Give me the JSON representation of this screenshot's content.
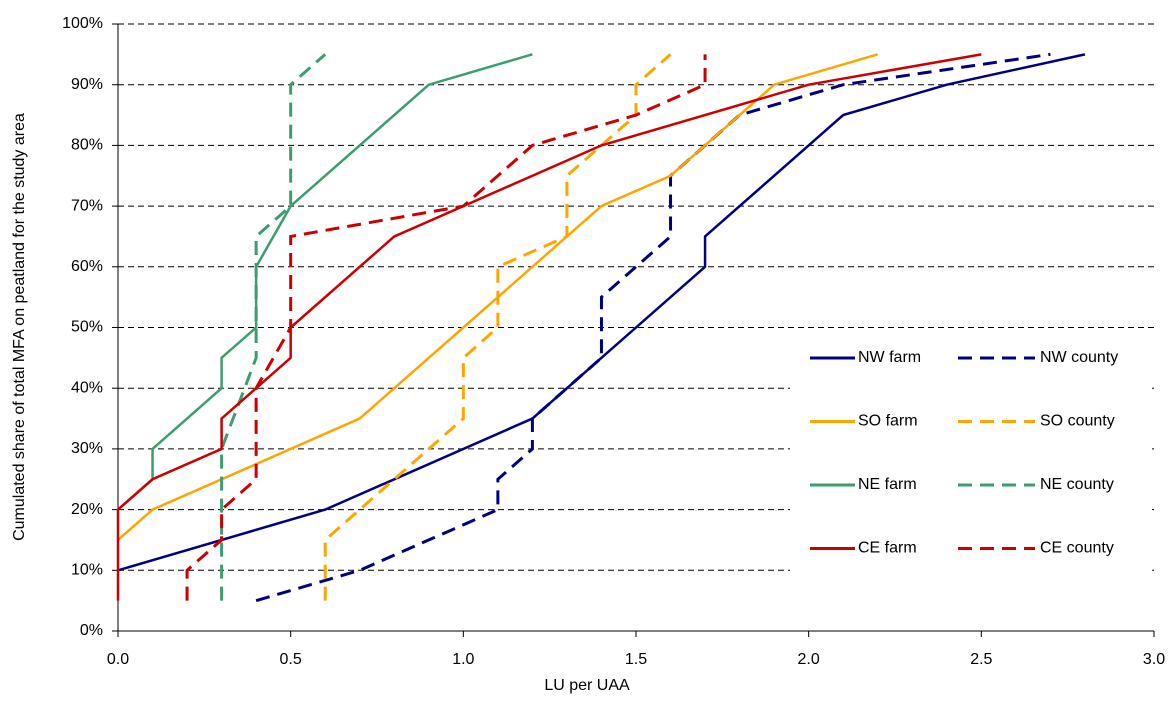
{
  "chart_data": {
    "type": "line",
    "x_label": "LU per UAA",
    "y_label": "Cumulated share of total MFA on peatland for the study area",
    "xlim": [
      0,
      3
    ],
    "ylim": [
      0,
      100
    ],
    "xticks": [
      {
        "value": 0,
        "label": "0.0"
      },
      0.5,
      {
        "value": 1,
        "label": "1.0"
      },
      1.5,
      {
        "value": 2,
        "label": "2.0"
      },
      2.5,
      {
        "value": 3,
        "label": "3.0"
      }
    ],
    "yticks": [
      {
        "value": 0,
        "label": "0%"
      },
      {
        "value": 10,
        "label": "10%"
      },
      {
        "value": 20,
        "label": "20%"
      },
      {
        "value": 30,
        "label": "30%"
      },
      {
        "value": 40,
        "label": "40%"
      },
      {
        "value": 50,
        "label": "50%"
      },
      {
        "value": 60,
        "label": "60%"
      },
      {
        "value": 70,
        "label": "70%"
      },
      {
        "value": 80,
        "label": "80%"
      },
      {
        "value": 90,
        "label": "90%"
      },
      {
        "value": 100,
        "label": "100%"
      }
    ],
    "grid": true,
    "legend": "right",
    "series": [
      {
        "name": "NW farm",
        "color": "#000080",
        "dash": false,
        "x": [
          0,
          0.6,
          1.2,
          1.4,
          1.7,
          1.7,
          2.1,
          2.4,
          2.8
        ],
        "values": [
          10,
          20,
          35,
          45,
          60,
          65,
          85,
          90,
          95
        ]
      },
      {
        "name": "NW county",
        "color": "#000080",
        "dash": true,
        "x": [
          0.4,
          0.7,
          1.1,
          1.1,
          1.2,
          1.2,
          1.4,
          1.4,
          1.6,
          1.6,
          1.8,
          2.1,
          2.7
        ],
        "values": [
          5,
          10,
          20,
          25,
          30,
          35,
          45,
          55,
          65,
          75,
          85,
          90,
          95
        ]
      },
      {
        "name": "SO farm",
        "color": "#FFA500",
        "dash": false,
        "x": [
          0,
          0.1,
          0.7,
          1.0,
          1.4,
          1.6,
          1.9,
          2.2
        ],
        "values": [
          15,
          20,
          35,
          50,
          70,
          75,
          90,
          95
        ]
      },
      {
        "name": "SO county",
        "color": "#FFA500",
        "dash": true,
        "x": [
          0.6,
          0.6,
          0.8,
          1.0,
          1.0,
          1.1,
          1.1,
          1.3,
          1.3,
          1.4,
          1.5,
          1.5,
          1.6
        ],
        "values": [
          5,
          15,
          25,
          35,
          45,
          50,
          60,
          65,
          75,
          80,
          85,
          90,
          95
        ]
      },
      {
        "name": "NE farm",
        "color": "#3A9E6F",
        "dash": false,
        "x": [
          0,
          0.1,
          0.1,
          0.3,
          0.3,
          0.4,
          0.4,
          0.5,
          0.9,
          1.2
        ],
        "values": [
          20,
          25,
          30,
          40,
          45,
          50,
          60,
          70,
          90,
          95
        ]
      },
      {
        "name": "NE county",
        "color": "#3A9E6F",
        "dash": true,
        "x": [
          0.3,
          0.3,
          0.4,
          0.4,
          0.5,
          0.5,
          0.6
        ],
        "values": [
          5,
          30,
          45,
          65,
          70,
          90,
          95
        ]
      },
      {
        "name": "CE farm",
        "color": "#CC0000",
        "dash": false,
        "x": [
          0,
          0,
          0.1,
          0.3,
          0.3,
          0.5,
          0.5,
          0.8,
          1.0,
          1.4,
          2.0,
          2.5
        ],
        "values": [
          5,
          20,
          25,
          30,
          35,
          45,
          50,
          65,
          70,
          80,
          90,
          95
        ]
      },
      {
        "name": "CE county",
        "color": "#CC0000",
        "dash": true,
        "x": [
          0.2,
          0.2,
          0.3,
          0.3,
          0.4,
          0.4,
          0.5,
          0.5,
          1.0,
          1.2,
          1.5,
          1.7,
          1.7
        ],
        "values": [
          5,
          10,
          15,
          20,
          25,
          40,
          50,
          65,
          70,
          80,
          85,
          90,
          95
        ]
      }
    ]
  }
}
